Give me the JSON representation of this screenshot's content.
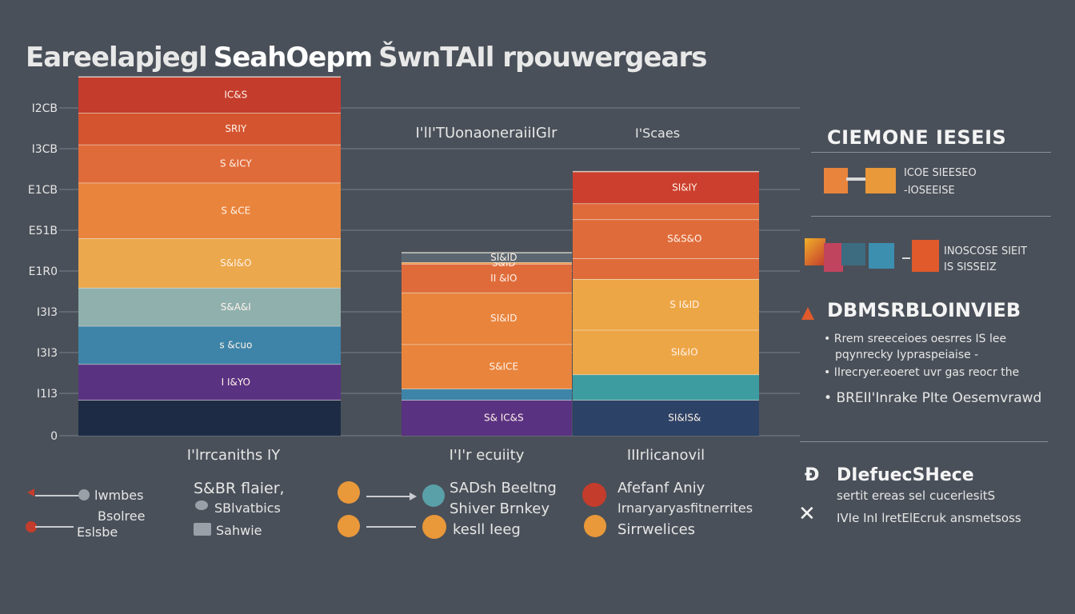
{
  "header": {
    "title_part1": "Eareelapjegl",
    "title_part2": "SeahOepm",
    "title_part3": "ŠwnTAIl rpouwergears"
  },
  "chart_data": {
    "type": "bar",
    "stacked": true,
    "title": "Eareelapjegl SeahOepm ŠwnTAIl rpouwergears",
    "y_ticks": [
      "I2CB",
      "I3CB",
      "E1CB",
      "E51B",
      "E1R0",
      "I3I3",
      "I3I3",
      "I1I3",
      "0"
    ],
    "categories": [
      "I'lrrcaniths IY",
      "I'I'r ecuiity",
      "IIIrlicanovil"
    ],
    "series_colors": [
      "#1d2c44",
      "#5a3282",
      "#3d84a8",
      "#8fb0ad",
      "#eba84c",
      "#e9843c",
      "#e06b3a",
      "#d4542f",
      "#c43c2c"
    ],
    "bars": [
      {
        "name": "I'lrrcaniths IY",
        "segments": [
          {
            "value": 45,
            "color": "#1d2c44",
            "label": ""
          },
          {
            "value": 45,
            "color": "#5a3282",
            "label": "I I&YO"
          },
          {
            "value": 48,
            "color": "#3d84a8",
            "label": "s &cuo"
          },
          {
            "value": 48,
            "color": "#8fb0ad",
            "label": "S&A&I"
          },
          {
            "value": 62,
            "color": "#eba84c",
            "label": "S&I&O"
          },
          {
            "value": 70,
            "color": "#e9843c",
            "label": "S &CE"
          },
          {
            "value": 48,
            "color": "#e06b3a",
            "label": "S &ICY"
          },
          {
            "value": 40,
            "color": "#d4542f",
            "label": "SRIY"
          },
          {
            "value": 45,
            "color": "#c43c2c",
            "label": "IC&S"
          }
        ]
      },
      {
        "name": "I'I'r ecuiity",
        "segments": [
          {
            "value": 45,
            "color": "#5a3282",
            "label": "S& IC&S"
          },
          {
            "value": 14,
            "color": "#3d84a8",
            "label": ""
          },
          {
            "value": 56,
            "color": "#e9843c",
            "label": "S&ICE"
          },
          {
            "value": 65,
            "color": "#e9843c",
            "label": "SI&ID"
          },
          {
            "value": 36,
            "color": "#e06b3a",
            "label": "II &IO"
          },
          {
            "value": 2,
            "color": "#ef9a4a",
            "label": "S&ID"
          },
          {
            "value": 12,
            "color": "#5b6670",
            "label": "SI&ID"
          }
        ]
      },
      {
        "name": "IIIrlicanovil",
        "segments": [
          {
            "value": 45,
            "color": "#2c4266",
            "label": "SI&IS&"
          },
          {
            "value": 32,
            "color": "#3d9ca0",
            "label": ""
          },
          {
            "value": 56,
            "color": "#eda646",
            "label": "SI&IO"
          },
          {
            "value": 64,
            "color": "#eda646",
            "label": "S I&ID"
          },
          {
            "value": 26,
            "color": "#e06b3a",
            "label": ""
          },
          {
            "value": 49,
            "color": "#e06b3a",
            "label": "S&S&O"
          },
          {
            "value": 20,
            "color": "#e06b3a",
            "label": ""
          },
          {
            "value": 40,
            "color": "#cc3f2e",
            "label": "SI&IY"
          }
        ]
      }
    ],
    "annotations": [
      "I'lI'TUonaoneraiiIGIr",
      "I'Scaes"
    ],
    "ymin": 0,
    "ymax": 412
  },
  "right_panel": {
    "title": "CIEMONE IESEIS",
    "item1": {
      "line1": "ICOE SIEESEO",
      "line2": "-IOSEEISE"
    },
    "item2": {
      "line1": "INOSCOSE SIEIT",
      "line2": "IS SISSEIZ"
    },
    "section_title": "DBMSRBLOINVIEB",
    "bullets": [
      "Rrem sreeceioes oesrres  IS lee",
      "pqynrecky   Iypraspeiaise -",
      "IIrecryer.eoeret uvr gas reocr the"
    ],
    "bullet4": "BREII'Inrake PIte Oesemvrawd",
    "foot_title": "DIefuecSHece",
    "foot_line1": "sertit ereas sel  cucerlesitS",
    "foot_line2": "IVIe InI lretElEcruk ansmetsoss"
  },
  "legend": {
    "left": [
      {
        "label": "lwmbes",
        "color": "#c43c2c"
      },
      {
        "label": "Bsolree",
        "color": "#c43c2c"
      },
      {
        "label": "Eslsbe",
        "color": "#9aa0a8"
      }
    ],
    "mid1": [
      {
        "label": "S&BR flaier,",
        "color": "#9aa0a8"
      },
      {
        "label": "SBlvatbics",
        "color": "#9aa0a8"
      },
      {
        "label": "Sahwie",
        "color": "#9aa0a8"
      }
    ],
    "mid2": [
      {
        "label": "SADsh Beeltng",
        "color": "#e9983a"
      },
      {
        "label": "Shiver Brnkey",
        "color": "#5aa0a8"
      },
      {
        "label": "kesll Ieeg",
        "color": "#e9983a"
      }
    ],
    "right": [
      {
        "label": "Afefanf Aniy",
        "color": "#c43c2c"
      },
      {
        "label": "Irnaryaryasfitnerrites",
        "color": "#c43c2c"
      },
      {
        "label": "Sirrwelices",
        "color": "#e9983a"
      }
    ]
  }
}
